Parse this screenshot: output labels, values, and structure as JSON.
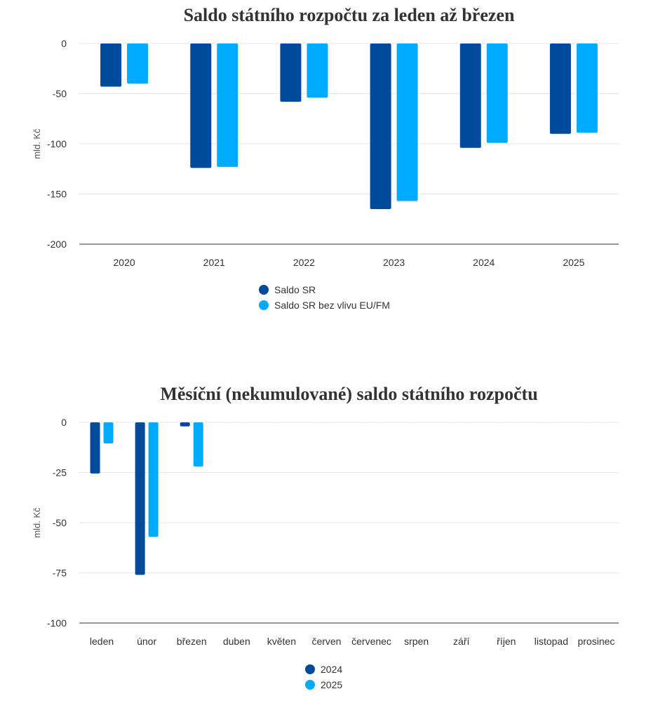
{
  "chart_data": [
    {
      "type": "bar",
      "title": "Saldo státního rozpočtu za leden až březen",
      "ylabel": "mld. Kč",
      "ylim": [
        -200,
        0
      ],
      "yticks": [
        0,
        -50,
        -100,
        -150,
        -200
      ],
      "categories": [
        "2020",
        "2021",
        "2022",
        "2023",
        "2024",
        "2025"
      ],
      "series": [
        {
          "name": "Saldo SR",
          "color": "#004a9c",
          "values": [
            -43,
            -124,
            -58,
            -165,
            -104,
            -90
          ]
        },
        {
          "name": "Saldo SR bez vlivu EU/FM",
          "color": "#00aaff",
          "values": [
            -40,
            -123,
            -54,
            -157,
            -99,
            -89
          ]
        }
      ],
      "grid": true,
      "legend": "bottom-center"
    },
    {
      "type": "bar",
      "title": "Měsíční (nekumulované) saldo státního rozpočtu",
      "ylabel": "mld. Kč",
      "ylim": [
        -100,
        0
      ],
      "yticks": [
        0,
        -25,
        -50,
        -75,
        -100
      ],
      "categories": [
        "leden",
        "únor",
        "březen",
        "duben",
        "květen",
        "červen",
        "červenec",
        "srpen",
        "září",
        "říjen",
        "listopad",
        "prosinec"
      ],
      "series": [
        {
          "name": "2024",
          "color": "#004a9c",
          "values": [
            -25.5,
            -76,
            -2,
            null,
            null,
            null,
            null,
            null,
            null,
            null,
            null,
            null
          ]
        },
        {
          "name": "2025",
          "color": "#00aaff",
          "values": [
            -10.5,
            -57,
            -22,
            null,
            null,
            null,
            null,
            null,
            null,
            null,
            null,
            null
          ]
        }
      ],
      "grid": true,
      "legend": "bottom-center"
    }
  ]
}
